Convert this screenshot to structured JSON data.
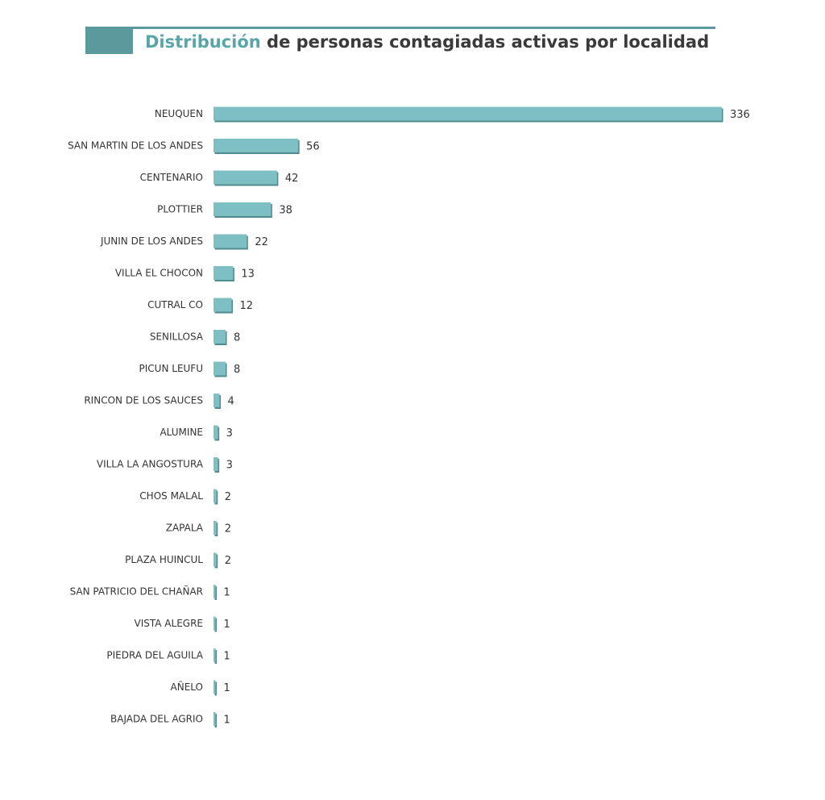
{
  "header": {
    "title_accent": "Distribución",
    "title_rest": " de personas contagiadas activas por localidad"
  },
  "colors": {
    "bar": "#7ebfc4",
    "bar_shadow": "#4f8b8f",
    "header_block": "#5a9a9c",
    "header_rule": "#5a9a9c"
  },
  "chart_data": {
    "type": "bar",
    "orientation": "horizontal",
    "title": "Distribución de personas contagiadas activas por localidad",
    "xlabel": "",
    "ylabel": "",
    "grid": false,
    "legend": "none",
    "xlim": [
      0,
      336
    ],
    "categories": [
      "NEUQUEN",
      "SAN MARTIN DE LOS ANDES",
      "CENTENARIO",
      "PLOTTIER",
      "JUNIN DE LOS ANDES",
      "VILLA EL CHOCON",
      "CUTRAL CO",
      "SENILLOSA",
      "PICUN LEUFU",
      "RINCON DE LOS SAUCES",
      "ALUMINE",
      "VILLA LA ANGOSTURA",
      "CHOS MALAL",
      "ZAPALA",
      "PLAZA HUINCUL",
      "SAN PATRICIO DEL CHAÑAR",
      "VISTA ALEGRE",
      "PIEDRA DEL AGUILA",
      "AÑELO",
      "BAJADA DEL AGRIO"
    ],
    "values": [
      336,
      56,
      42,
      38,
      22,
      13,
      12,
      8,
      8,
      4,
      3,
      3,
      2,
      2,
      2,
      1,
      1,
      1,
      1,
      1
    ]
  }
}
